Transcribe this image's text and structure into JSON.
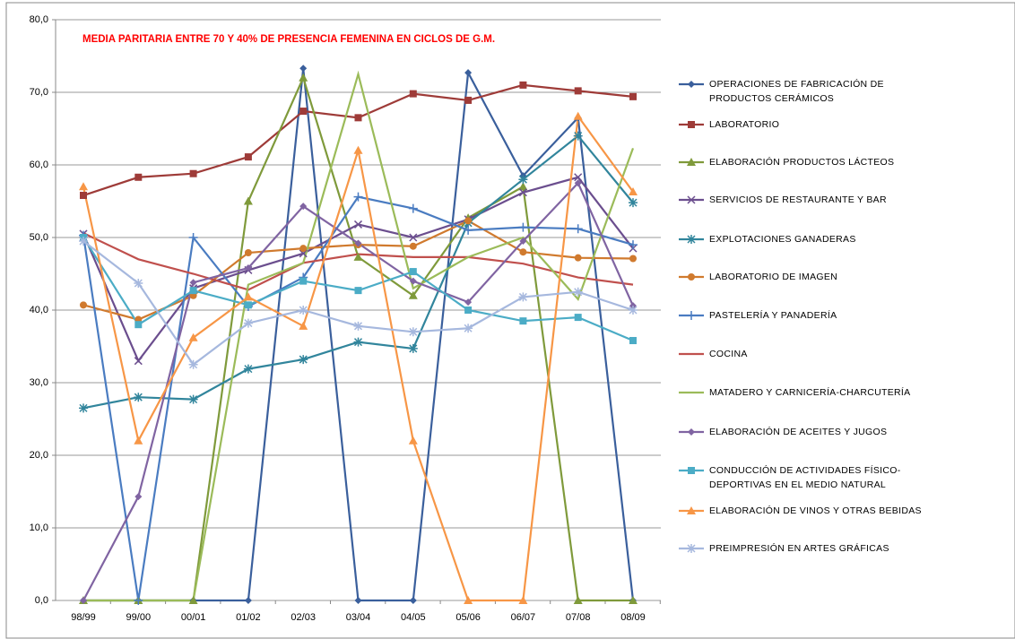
{
  "chart_data": {
    "type": "line",
    "title": "MEDIA PARITARIA ENTRE 70 Y 40% DE PRESENCIA FEMENINA EN CICLOS DE G.M.",
    "categories": [
      "98/99",
      "99/00",
      "00/01",
      "01/02",
      "02/03",
      "03/04",
      "04/05",
      "05/06",
      "06/07",
      "07/08",
      "08/09"
    ],
    "ylim": [
      0,
      80
    ],
    "yticks": [
      {
        "value": 0,
        "label": "0,0"
      },
      {
        "value": 10,
        "label": "10,0"
      },
      {
        "value": 20,
        "label": "20,0"
      },
      {
        "value": 30,
        "label": "30,0"
      },
      {
        "value": 40,
        "label": "40,0"
      },
      {
        "value": 50,
        "label": "50,0"
      },
      {
        "value": 60,
        "label": "60,0"
      },
      {
        "value": 70,
        "label": "70,0"
      },
      {
        "value": 80,
        "label": "80,0"
      }
    ],
    "grid": true,
    "legend": "right",
    "series": [
      {
        "name": "OPERACIONES DE FABRICACIÓN DE PRODUCTOS CERÁMICOS",
        "color": "#3A5F9C",
        "marker": "diamond",
        "values": [
          0,
          0,
          0,
          0,
          73.3,
          0,
          0,
          72.7,
          58.5,
          66.5,
          0
        ]
      },
      {
        "name": "LABORATORIO",
        "color": "#9E3B38",
        "marker": "square",
        "values": [
          55.8,
          58.3,
          58.8,
          61.1,
          67.4,
          66.5,
          69.8,
          68.9,
          71.0,
          70.2,
          69.4
        ]
      },
      {
        "name": "ELABORACIÓN PRODUCTOS LÁCTEOS",
        "color": "#7F9A3B",
        "marker": "triangle",
        "values": [
          0,
          0,
          0,
          55.0,
          72.0,
          47.3,
          42.0,
          52.7,
          57.0,
          0,
          0
        ]
      },
      {
        "name": "SERVICIOS DE RESTAURANTE Y BAR",
        "color": "#6B4E8E",
        "marker": "x",
        "values": [
          50.5,
          33.0,
          43.0,
          45.5,
          47.8,
          51.8,
          50.0,
          52.5,
          56.2,
          58.3,
          48.5
        ]
      },
      {
        "name": "EXPLOTACIONES GANADERAS",
        "color": "#31859C",
        "marker": "asterisk",
        "values": [
          26.5,
          28.0,
          27.7,
          31.9,
          33.2,
          35.6,
          34.7,
          52.0,
          58.0,
          64.0,
          54.8
        ]
      },
      {
        "name": "LABORATORIO DE IMAGEN",
        "color": "#D07A2E",
        "marker": "circle",
        "values": [
          40.7,
          38.7,
          42.0,
          47.9,
          48.5,
          49.0,
          48.8,
          52.3,
          48.0,
          47.2,
          47.1
        ]
      },
      {
        "name": "PASTELERÍA Y PANADERÍA",
        "color": "#4A7CC1",
        "marker": "plus",
        "values": [
          50.3,
          0,
          50.0,
          40.5,
          44.5,
          55.6,
          54.0,
          51.0,
          51.4,
          51.2,
          49.0
        ]
      },
      {
        "name": "COCINA",
        "color": "#C0504D",
        "marker": "none",
        "values": [
          50.6,
          47.0,
          45.0,
          42.8,
          46.5,
          47.7,
          47.3,
          47.3,
          46.4,
          44.5,
          43.5
        ]
      },
      {
        "name": "MATADERO Y CARNICERÍA-CHARCUTERÍA",
        "color": "#9BBB59",
        "marker": "none",
        "values": [
          0,
          0,
          0,
          43.5,
          46.5,
          72.5,
          43.0,
          47.3,
          50.0,
          41.5,
          62.3
        ]
      },
      {
        "name": "ELABORACIÓN DE ACEITES Y JUGOS",
        "color": "#8064A2",
        "marker": "diamond",
        "values": [
          0,
          14.3,
          43.8,
          45.8,
          54.3,
          49.2,
          44.0,
          41.1,
          49.5,
          57.5,
          40.6
        ]
      },
      {
        "name": "CONDUCCIÓN DE ACTIVIDADES FÍSICO-DEPORTIVAS  EN EL MEDIO NATURAL",
        "color": "#4BACC6",
        "marker": "square",
        "values": [
          50.0,
          38.0,
          42.7,
          40.7,
          44.0,
          42.7,
          45.3,
          40.0,
          38.5,
          39.0,
          35.8
        ]
      },
      {
        "name": "ELABORACIÓN DE VINOS Y OTRAS BEBIDAS",
        "color": "#F79646",
        "marker": "triangle",
        "values": [
          57.0,
          22.0,
          36.2,
          41.8,
          37.8,
          62.0,
          22.0,
          0,
          0,
          66.7,
          56.3
        ]
      },
      {
        "name": "PREIMPRESIÓN EN ARTES GRÁFICAS",
        "color": "#A6B8DE",
        "marker": "asterisk",
        "values": [
          49.5,
          43.7,
          32.5,
          38.2,
          40.0,
          37.8,
          37.0,
          37.5,
          41.8,
          42.5,
          40.0
        ]
      }
    ]
  }
}
